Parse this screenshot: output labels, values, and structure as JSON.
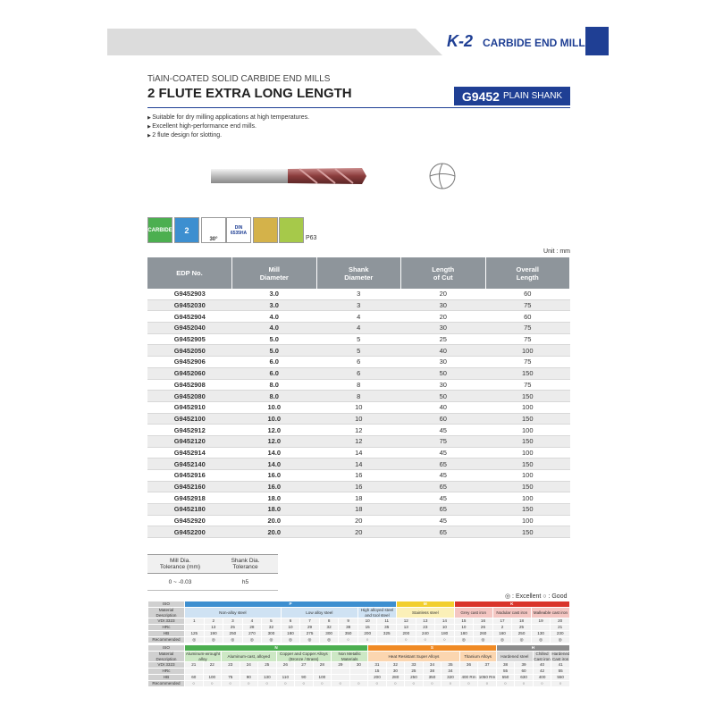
{
  "header": {
    "brand": "K-2",
    "product_line": "CARBIDE END MILLS"
  },
  "title": {
    "subtitle": "TiAIN-COATED SOLID CARBIDE END MILLS",
    "main": "2 FLUTE EXTRA LONG LENGTH",
    "code": "G9452",
    "code_desc": "PLAIN SHANK"
  },
  "features": [
    "Suitable for dry milling applications at high temperatures.",
    "Excellent high-performance end mills.",
    "2 flute design for slotting."
  ],
  "icons": {
    "material": "CARBIDE",
    "flutes": "2",
    "helix": "30°",
    "standard": "DIN 6535HA",
    "page_ref": "P63"
  },
  "unit": "Unit : mm",
  "table": {
    "headers": [
      "EDP No.",
      "Mill\nDiameter",
      "Shank\nDiameter",
      "Length\nof Cut",
      "Overall\nLength"
    ],
    "rows": [
      [
        "G9452903",
        "3.0",
        "3",
        "20",
        "60"
      ],
      [
        "G9452030",
        "3.0",
        "3",
        "30",
        "75"
      ],
      [
        "G9452904",
        "4.0",
        "4",
        "20",
        "60"
      ],
      [
        "G9452040",
        "4.0",
        "4",
        "30",
        "75"
      ],
      [
        "G9452905",
        "5.0",
        "5",
        "25",
        "75"
      ],
      [
        "G9452050",
        "5.0",
        "5",
        "40",
        "100"
      ],
      [
        "G9452906",
        "6.0",
        "6",
        "30",
        "75"
      ],
      [
        "G9452060",
        "6.0",
        "6",
        "50",
        "150"
      ],
      [
        "G9452908",
        "8.0",
        "8",
        "30",
        "75"
      ],
      [
        "G9452080",
        "8.0",
        "8",
        "50",
        "150"
      ],
      [
        "G9452910",
        "10.0",
        "10",
        "40",
        "100"
      ],
      [
        "G9452100",
        "10.0",
        "10",
        "60",
        "150"
      ],
      [
        "G9452912",
        "12.0",
        "12",
        "45",
        "100"
      ],
      [
        "G9452120",
        "12.0",
        "12",
        "75",
        "150"
      ],
      [
        "G9452914",
        "14.0",
        "14",
        "45",
        "100"
      ],
      [
        "G9452140",
        "14.0",
        "14",
        "65",
        "150"
      ],
      [
        "G9452916",
        "16.0",
        "16",
        "45",
        "100"
      ],
      [
        "G9452160",
        "16.0",
        "16",
        "65",
        "150"
      ],
      [
        "G9452918",
        "18.0",
        "18",
        "45",
        "100"
      ],
      [
        "G9452180",
        "18.0",
        "18",
        "65",
        "150"
      ],
      [
        "G9452920",
        "20.0",
        "20",
        "45",
        "100"
      ],
      [
        "G9452200",
        "20.0",
        "20",
        "65",
        "150"
      ]
    ]
  },
  "tolerance": {
    "headers": [
      "Mill Dia.\nTolerance (mm)",
      "Shank Dia.\nTolerance"
    ],
    "values": [
      "0 ~ -0.03",
      "h5"
    ]
  },
  "materials": {
    "legend": "◎ : Excellent  ○ : Good",
    "iso_label": "ISO",
    "desc_label": "Material\nDescription",
    "row_labels": [
      "VDI 3323",
      "HRc",
      "HB",
      "Recommended"
    ],
    "blocks": [
      {
        "groups": [
          {
            "iso": "P",
            "color": "#3d8fd0",
            "tint": "#cfe2f3",
            "materials": [
              {
                "name": "Non-alloy steel",
                "cols": [
                  [
                    "1",
                    null,
                    "125",
                    "◎"
                  ],
                  [
                    "2",
                    "13",
                    "190",
                    "◎"
                  ],
                  [
                    "3",
                    "25",
                    "250",
                    "◎"
                  ],
                  [
                    "4",
                    "28",
                    "270",
                    "◎"
                  ],
                  [
                    "5",
                    "32",
                    "300",
                    "◎"
                  ]
                ]
              },
              {
                "name": "Low alloy steel",
                "cols": [
                  [
                    "6",
                    "10",
                    "180",
                    "◎"
                  ],
                  [
                    "7",
                    "29",
                    "275",
                    "◎"
                  ],
                  [
                    "8",
                    "32",
                    "300",
                    "◎"
                  ],
                  [
                    "9",
                    "38",
                    "350",
                    "○"
                  ]
                ]
              },
              {
                "name": "High alloyed steel and tool steel",
                "cols": [
                  [
                    "10",
                    "15",
                    "200",
                    "○"
                  ],
                  [
                    "11",
                    "35",
                    "325",
                    null
                  ]
                ]
              }
            ]
          },
          {
            "iso": "M",
            "color": "#f2cf2e",
            "tint": "#fbf0b8",
            "materials": [
              {
                "name": "Stainless steel",
                "cols": [
                  [
                    "12",
                    "13",
                    "200",
                    "○"
                  ],
                  [
                    "13",
                    "23",
                    "240",
                    "○"
                  ],
                  [
                    "14",
                    "10",
                    "180",
                    "○"
                  ]
                ]
              }
            ]
          },
          {
            "iso": "K",
            "color": "#d9342b",
            "tint": "#f4c6c2",
            "materials": [
              {
                "name": "Grey cast iron",
                "cols": [
                  [
                    "15",
                    "10",
                    "180",
                    "◎"
                  ],
                  [
                    "16",
                    "26",
                    "260",
                    "◎"
                  ]
                ]
              },
              {
                "name": "Nodular cast iron",
                "cols": [
                  [
                    "17",
                    "2",
                    "160",
                    "◎"
                  ],
                  [
                    "18",
                    "25",
                    "250",
                    "◎"
                  ]
                ]
              },
              {
                "name": "Malleable cast iron",
                "cols": [
                  [
                    "19",
                    null,
                    "130",
                    "◎"
                  ],
                  [
                    "20",
                    "21",
                    "230",
                    "◎"
                  ]
                ]
              }
            ]
          }
        ]
      },
      {
        "groups": [
          {
            "iso": "N",
            "color": "#4caf50",
            "tint": "#cde8c5",
            "materials": [
              {
                "name": "Aluminum-wrought alloy",
                "cols": [
                  [
                    "21",
                    null,
                    "60",
                    "○"
                  ],
                  [
                    "22",
                    null,
                    "100",
                    "○"
                  ]
                ]
              },
              {
                "name": "Aluminum-cast, alloyed",
                "cols": [
                  [
                    "23",
                    null,
                    "75",
                    "○"
                  ],
                  [
                    "24",
                    null,
                    "90",
                    "○"
                  ],
                  [
                    "25",
                    null,
                    "130",
                    "○"
                  ]
                ]
              },
              {
                "name": "Copper and Copper Alloys (Bronze / Brass)",
                "cols": [
                  [
                    "26",
                    null,
                    "110",
                    "○"
                  ],
                  [
                    "27",
                    null,
                    "90",
                    "○"
                  ],
                  [
                    "28",
                    null,
                    "100",
                    "○"
                  ]
                ]
              },
              {
                "name": "Non Metallic Materials",
                "cols": [
                  [
                    "29",
                    null,
                    null,
                    "○"
                  ],
                  [
                    "30",
                    null,
                    null,
                    "○"
                  ]
                ]
              }
            ]
          },
          {
            "iso": "S",
            "color": "#f08a24",
            "tint": "#fbd6b0",
            "materials": [
              {
                "name": "Heat Resistant Super Alloys",
                "cols": [
                  [
                    "31",
                    "15",
                    "200",
                    "○"
                  ],
                  [
                    "32",
                    "30",
                    "280",
                    "○"
                  ],
                  [
                    "33",
                    "25",
                    "250",
                    "○"
                  ],
                  [
                    "34",
                    "38",
                    "350",
                    "○"
                  ],
                  [
                    "35",
                    "34",
                    "320",
                    "○"
                  ]
                ]
              },
              {
                "name": "Titanium Alloys",
                "cols": [
                  [
                    "36",
                    null,
                    "400 Rm",
                    "○"
                  ],
                  [
                    "37",
                    null,
                    "1050 Rm",
                    "○"
                  ]
                ]
              }
            ]
          },
          {
            "iso": "H",
            "color": "#8c8c8c",
            "tint": "#dadada",
            "materials": [
              {
                "name": "Hardened steel",
                "cols": [
                  [
                    "38",
                    "55",
                    "550",
                    "○"
                  ],
                  [
                    "39",
                    "60",
                    "630",
                    "○"
                  ]
                ]
              },
              {
                "name": "Chilled Cast iron",
                "cols": [
                  [
                    "40",
                    "42",
                    "400",
                    "○"
                  ]
                ]
              },
              {
                "name": "Hardened Cast iron",
                "cols": [
                  [
                    "41",
                    "55",
                    "550",
                    "○"
                  ]
                ]
              }
            ]
          }
        ]
      }
    ]
  }
}
